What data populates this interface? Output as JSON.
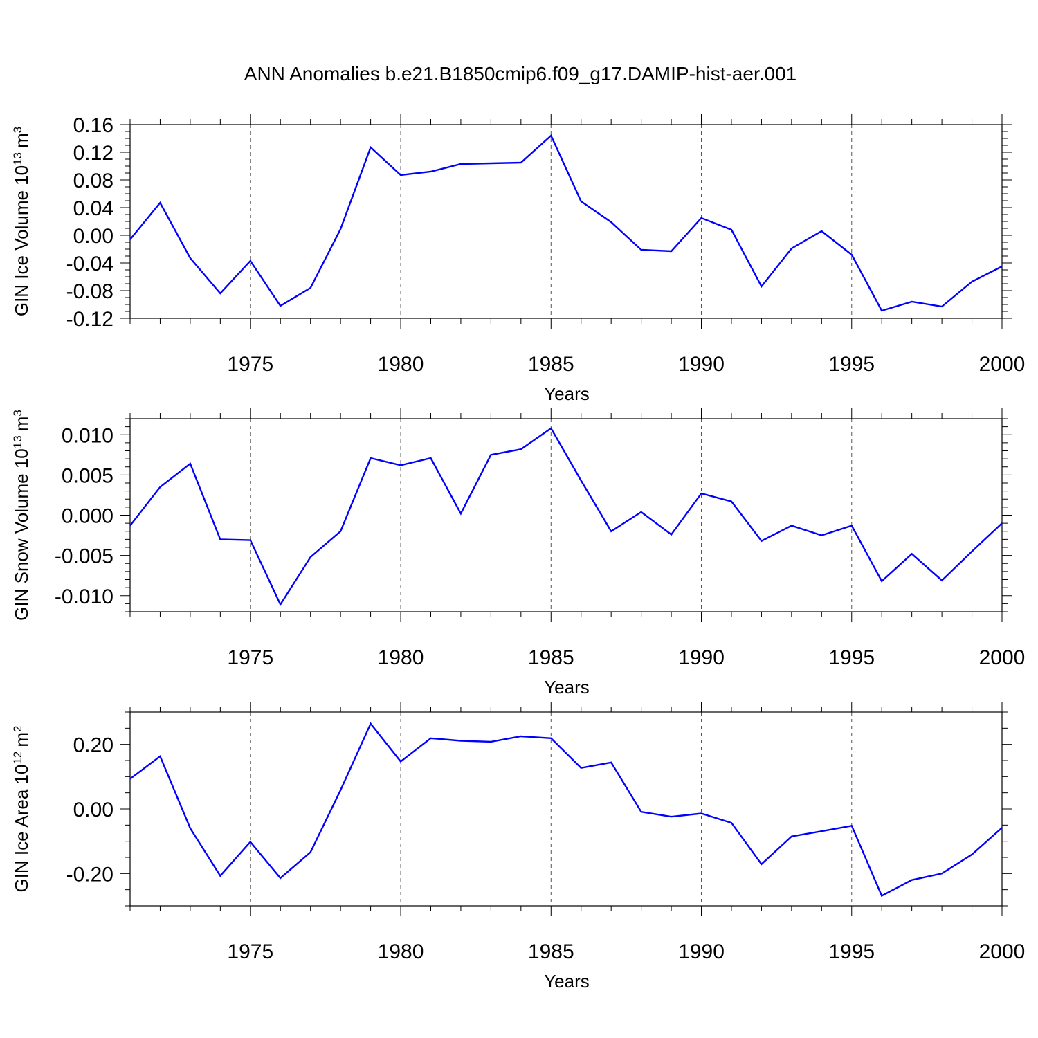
{
  "figure_title": "ANN Anomalies b.e21.B1850cmip6.f09_g17.DAMIP-hist-aer.001",
  "colors": {
    "series": "#0000ff",
    "axes": "#000000",
    "grid": "#555555"
  },
  "chart_data": [
    {
      "type": "line",
      "id": "ice-volume",
      "ylabel": "GIN Ice Volume 10",
      "ylabel_exp": "13",
      "ylabel_unit": "m",
      "ylabel_unit_exp": "3",
      "xlabel": "Years",
      "xlim": [
        1971,
        2000
      ],
      "ylim": [
        -0.12,
        0.16
      ],
      "xticks": [
        1975,
        1980,
        1985,
        1990,
        1995,
        2000
      ],
      "xtick_labels": [
        "1975",
        "1980",
        "1985",
        "1990",
        "1995",
        "2000"
      ],
      "yticks": [
        -0.12,
        -0.08,
        -0.04,
        0.0,
        0.04,
        0.08,
        0.12,
        0.16
      ],
      "ytick_labels": [
        "-0.12",
        "-0.08",
        "-0.04",
        "0.00",
        "0.04",
        "0.08",
        "0.12",
        "0.16"
      ],
      "y_minor_step": 0.01,
      "grid_x": [
        1975,
        1980,
        1985,
        1990,
        1995
      ],
      "x": [
        1971,
        1972,
        1973,
        1974,
        1975,
        1976,
        1977,
        1978,
        1979,
        1980,
        1981,
        1982,
        1983,
        1984,
        1985,
        1986,
        1987,
        1988,
        1989,
        1990,
        1991,
        1992,
        1993,
        1994,
        1995,
        1996,
        1997,
        1998,
        1999,
        2000
      ],
      "values": [
        -0.006,
        0.047,
        -0.033,
        -0.084,
        -0.037,
        -0.102,
        -0.076,
        0.009,
        0.127,
        0.087,
        0.092,
        0.103,
        0.104,
        0.105,
        0.144,
        0.049,
        0.019,
        -0.021,
        -0.023,
        0.025,
        0.008,
        -0.074,
        -0.019,
        0.006,
        -0.028,
        -0.109,
        -0.096,
        -0.103,
        -0.067,
        -0.045
      ]
    },
    {
      "type": "line",
      "id": "snow-volume",
      "ylabel": "GIN Snow Volume 10",
      "ylabel_exp": "13",
      "ylabel_unit": "m",
      "ylabel_unit_exp": "3",
      "xlabel": "Years",
      "xlim": [
        1971,
        2000
      ],
      "ylim": [
        -0.012,
        0.012
      ],
      "xticks": [
        1975,
        1980,
        1985,
        1990,
        1995,
        2000
      ],
      "xtick_labels": [
        "1975",
        "1980",
        "1985",
        "1990",
        "1995",
        "2000"
      ],
      "yticks": [
        -0.01,
        -0.005,
        0.0,
        0.005,
        0.01
      ],
      "ytick_labels": [
        "-0.010",
        "-0.005",
        "0.000",
        "0.005",
        "0.010"
      ],
      "y_minor_step": 0.001,
      "grid_x": [
        1975,
        1980,
        1985,
        1990,
        1995
      ],
      "x": [
        1971,
        1972,
        1973,
        1974,
        1975,
        1976,
        1977,
        1978,
        1979,
        1980,
        1981,
        1982,
        1983,
        1984,
        1985,
        1986,
        1987,
        1988,
        1989,
        1990,
        1991,
        1992,
        1993,
        1994,
        1995,
        1996,
        1997,
        1998,
        1999,
        2000
      ],
      "values": [
        -0.0013,
        0.0035,
        0.0064,
        -0.003,
        -0.0031,
        -0.0111,
        -0.0052,
        -0.002,
        0.0071,
        0.0062,
        0.0071,
        0.0002,
        0.0075,
        0.0082,
        0.0108,
        0.0043,
        -0.002,
        0.0004,
        -0.0024,
        0.0027,
        0.0017,
        -0.0032,
        -0.0013,
        -0.0025,
        -0.0013,
        -0.0082,
        -0.0048,
        -0.0081,
        -0.0045,
        -0.001
      ]
    },
    {
      "type": "line",
      "id": "ice-area",
      "ylabel": "GIN Ice Area 10",
      "ylabel_exp": "12",
      "ylabel_unit": "m",
      "ylabel_unit_exp": "2",
      "xlabel": "Years",
      "xlim": [
        1971,
        2000
      ],
      "ylim": [
        -0.3,
        0.3
      ],
      "xticks": [
        1975,
        1980,
        1985,
        1990,
        1995,
        2000
      ],
      "xtick_labels": [
        "1975",
        "1980",
        "1985",
        "1990",
        "1995",
        "2000"
      ],
      "yticks": [
        -0.2,
        0.0,
        0.2
      ],
      "ytick_labels": [
        "-0.20",
        "0.00",
        "0.20"
      ],
      "y_minor_step": 0.05,
      "grid_x": [
        1975,
        1980,
        1985,
        1990,
        1995
      ],
      "x": [
        1971,
        1972,
        1973,
        1974,
        1975,
        1976,
        1977,
        1978,
        1979,
        1980,
        1981,
        1982,
        1983,
        1984,
        1985,
        1986,
        1987,
        1988,
        1989,
        1990,
        1991,
        1992,
        1993,
        1994,
        1995,
        1996,
        1997,
        1998,
        1999,
        2000
      ],
      "values": [
        0.093,
        0.163,
        -0.06,
        -0.207,
        -0.102,
        -0.214,
        -0.134,
        0.058,
        0.264,
        0.147,
        0.219,
        0.211,
        0.208,
        0.225,
        0.219,
        0.127,
        0.144,
        -0.009,
        -0.024,
        -0.014,
        -0.043,
        -0.171,
        -0.085,
        -0.069,
        -0.052,
        -0.269,
        -0.22,
        -0.2,
        -0.141,
        -0.058
      ]
    }
  ]
}
